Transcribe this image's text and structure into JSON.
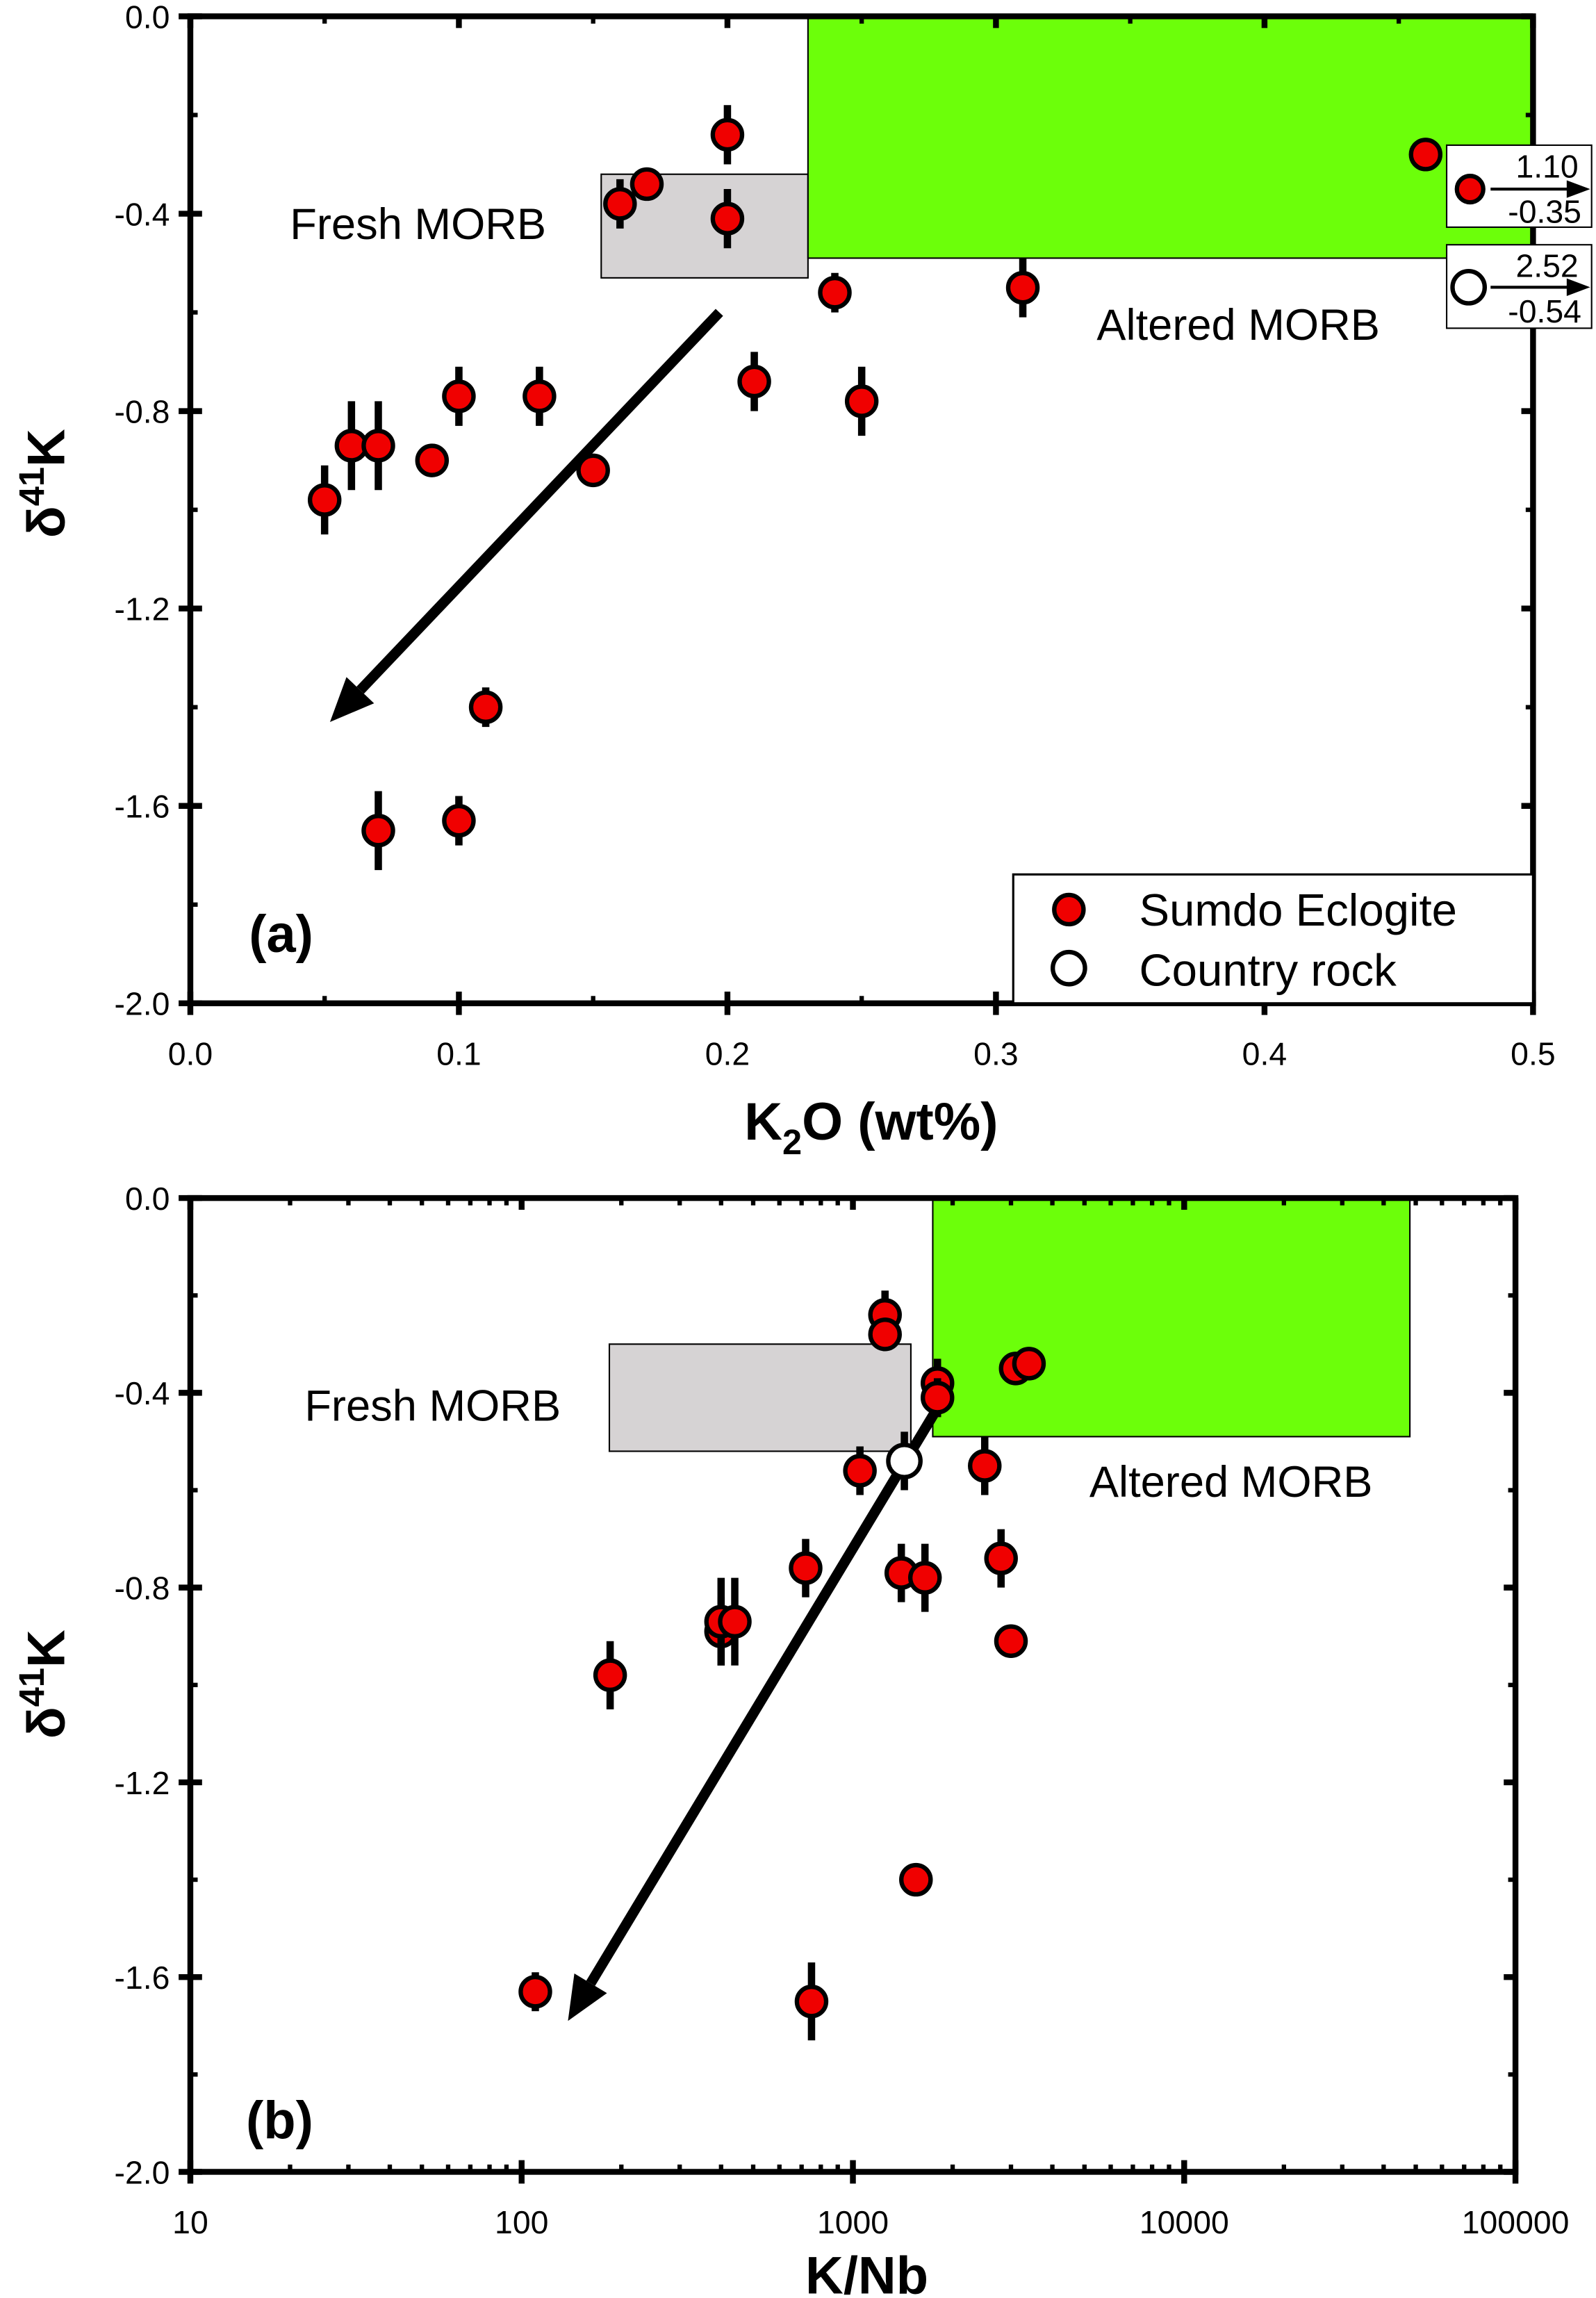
{
  "chart_data": [
    {
      "type": "scatter",
      "panel_label": "(a)",
      "xlabel_main": "K",
      "xlabel_sub": "2",
      "xlabel_rest": "O (wt%)",
      "ylabel_main": "δ",
      "ylabel_sup": "41",
      "ylabel_rest": "K",
      "xscale": "linear",
      "xlim": [
        0,
        0.5
      ],
      "ylim": [
        -2.0,
        0.0
      ],
      "xticks": [
        "0.0",
        "0.1",
        "0.2",
        "0.3",
        "0.4",
        "0.5"
      ],
      "xtick_values": [
        0,
        0.1,
        0.2,
        0.3,
        0.4,
        0.5
      ],
      "yticks": [
        "0.0",
        "-0.4",
        "-0.8",
        "-1.2",
        "-1.6",
        "-2.0"
      ],
      "ytick_values": [
        0,
        -0.4,
        -0.8,
        -1.2,
        -1.6,
        -2.0
      ],
      "fields": [
        {
          "name": "Fresh MORB",
          "x": [
            0.153,
            0.23
          ],
          "y": [
            -0.53,
            -0.32
          ],
          "color": "#d6d3d4"
        },
        {
          "name": "Altered MORB",
          "x": [
            0.23,
            0.5
          ],
          "y": [
            -0.49,
            0.0
          ],
          "color": "#6cff0a"
        }
      ],
      "trend_arrow": {
        "from": [
          0.197,
          -0.6
        ],
        "to": [
          0.052,
          -1.43
        ]
      },
      "series": [
        {
          "name": "Sumdo Eclogite",
          "marker": "filled-circle",
          "color": "#f00000",
          "points": [
            [
              0.05,
              -0.98,
              0.07
            ],
            [
              0.06,
              -0.87,
              0.09
            ],
            [
              0.07,
              -0.87,
              0.09
            ],
            [
              0.09,
              -0.9,
              0.0
            ],
            [
              0.1,
              -0.77,
              0.06
            ],
            [
              0.13,
              -0.77,
              0.06
            ],
            [
              0.15,
              -0.92,
              0.03
            ],
            [
              0.16,
              -0.38,
              0.05
            ],
            [
              0.17,
              -0.34,
              0.02
            ],
            [
              0.2,
              -0.24,
              0.06
            ],
            [
              0.2,
              -0.41,
              0.06
            ],
            [
              0.21,
              -0.74,
              0.06
            ],
            [
              0.24,
              -0.56,
              0.04
            ],
            [
              0.25,
              -0.78,
              0.07
            ],
            [
              0.31,
              -0.55,
              0.06
            ],
            [
              0.46,
              -0.28,
              0.0
            ],
            [
              0.11,
              -1.4,
              0.04
            ],
            [
              0.07,
              -1.65,
              0.08
            ],
            [
              0.1,
              -1.63,
              0.05
            ]
          ]
        },
        {
          "name": "Country rock",
          "marker": "open-circle",
          "color": "#ffffff",
          "points": []
        }
      ],
      "offscale": [
        {
          "series": "Sumdo Eclogite",
          "x": "1.10",
          "y": "-0.35"
        },
        {
          "series": "Country rock",
          "x": "2.52",
          "y": "-0.54"
        }
      ],
      "legend": [
        "Sumdo Eclogite",
        "Country rock"
      ],
      "legend_position": "bottom-right"
    },
    {
      "type": "scatter",
      "panel_label": "(b)",
      "xlabel": "K/Nb",
      "ylabel_main": "δ",
      "ylabel_sup": "41",
      "ylabel_rest": "K",
      "xscale": "log",
      "xlim": [
        10,
        100000
      ],
      "ylim": [
        -2.0,
        0.0
      ],
      "xticks": [
        "10",
        "100",
        "1000",
        "10000",
        "100000"
      ],
      "xtick_values": [
        10,
        100,
        1000,
        10000,
        100000
      ],
      "yticks": [
        "0.0",
        "-0.4",
        "-0.8",
        "-1.2",
        "-1.6",
        "-2.0"
      ],
      "ytick_values": [
        0,
        -0.4,
        -0.8,
        -1.2,
        -1.6,
        -2.0
      ],
      "fields": [
        {
          "name": "Fresh MORB",
          "x": [
            184,
            1496
          ],
          "y": [
            -0.52,
            -0.3
          ],
          "color": "#d6d3d4"
        },
        {
          "name": "Altered MORB",
          "x": [
            1742,
            48000
          ],
          "y": [
            -0.49,
            0.0
          ],
          "color": "#6cff0a"
        }
      ],
      "trend_arrow": {
        "from": [
          1880,
          -0.41
        ],
        "to": [
          138,
          -1.69
        ]
      },
      "series": [
        {
          "name": "Sumdo Eclogite",
          "marker": "filled-circle",
          "color": "#f00000",
          "points": [
            [
              1250,
              -0.24,
              0.05
            ],
            [
              1250,
              -0.28,
              0.03
            ],
            [
              3100,
              -0.35,
              0.0
            ],
            [
              3400,
              -0.34,
              0.0
            ],
            [
              1800,
              -0.38,
              0.05
            ],
            [
              1800,
              -0.41,
              0.04
            ],
            [
              1050,
              -0.56,
              0.05
            ],
            [
              2500,
              -0.55,
              0.06
            ],
            [
              720,
              -0.76,
              0.06
            ],
            [
              1400,
              -0.77,
              0.06
            ],
            [
              1650,
              -0.78,
              0.07
            ],
            [
              2800,
              -0.74,
              0.06
            ],
            [
              400,
              -0.89,
              0.07
            ],
            [
              400,
              -0.87,
              0.09
            ],
            [
              440,
              -0.87,
              0.09
            ],
            [
              3000,
              -0.91,
              0.0
            ],
            [
              185,
              -0.98,
              0.07
            ],
            [
              1550,
              -1.4,
              0.03
            ],
            [
              110,
              -1.63,
              0.04
            ],
            [
              750,
              -1.65,
              0.08
            ]
          ]
        },
        {
          "name": "Country rock",
          "marker": "open-circle",
          "color": "#ffffff",
          "points": [
            [
              1430,
              -0.54,
              0.06
            ]
          ]
        }
      ]
    }
  ]
}
